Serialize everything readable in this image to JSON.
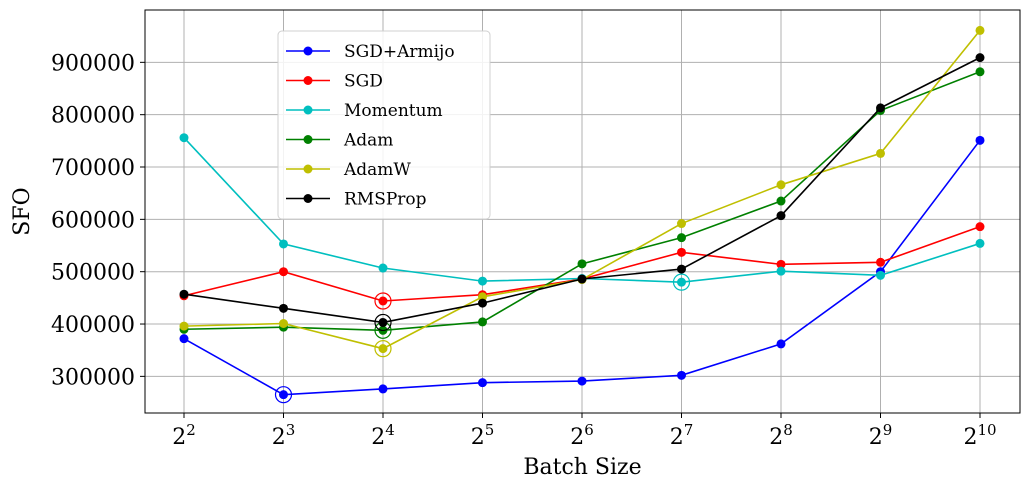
{
  "chart_data": {
    "type": "line",
    "xlabel": "Batch Size",
    "ylabel": "SFO",
    "x_base": "2",
    "x_exponents": [
      "2",
      "3",
      "4",
      "5",
      "6",
      "7",
      "8",
      "9",
      "10"
    ],
    "x_scale": "log2",
    "ylim": [
      230000,
      1000000
    ],
    "yticks": [
      {
        "value": 300000,
        "label": "300000"
      },
      {
        "value": 400000,
        "label": "400000"
      },
      {
        "value": 500000,
        "label": "500000"
      },
      {
        "value": 600000,
        "label": "600000"
      },
      {
        "value": 700000,
        "label": "700000"
      },
      {
        "value": 800000,
        "label": "800000"
      },
      {
        "value": 900000,
        "label": "900000"
      }
    ],
    "grid": true,
    "legend": "upper-left",
    "series": [
      {
        "name": "SGD+Armijo",
        "color": "#0000ff",
        "values": [
          372000,
          265000,
          276000,
          288000,
          291000,
          302000,
          362000,
          500000,
          751000
        ],
        "circled_index": 1
      },
      {
        "name": "SGD",
        "color": "#ff0000",
        "values": [
          454000,
          500000,
          444000,
          456000,
          486000,
          537000,
          514000,
          518000,
          586000
        ],
        "circled_index": 2
      },
      {
        "name": "Momentum",
        "color": "#00bfbf",
        "values": [
          756000,
          553000,
          507000,
          482000,
          487000,
          480000,
          501000,
          493000,
          554000
        ],
        "circled_index": 5
      },
      {
        "name": "Adam",
        "color": "#008000",
        "values": [
          390000,
          394000,
          388000,
          404000,
          515000,
          565000,
          635000,
          808000,
          882000
        ],
        "circled_index": 2
      },
      {
        "name": "AdamW",
        "color": "#bfbf00",
        "values": [
          396000,
          401000,
          353000,
          452000,
          485000,
          592000,
          666000,
          726000,
          961000
        ],
        "circled_index": 2
      },
      {
        "name": "RMSProp",
        "color": "#000000",
        "values": [
          457000,
          430000,
          403000,
          440000,
          486000,
          505000,
          607000,
          813000,
          909000
        ],
        "circled_index": 2
      }
    ]
  }
}
